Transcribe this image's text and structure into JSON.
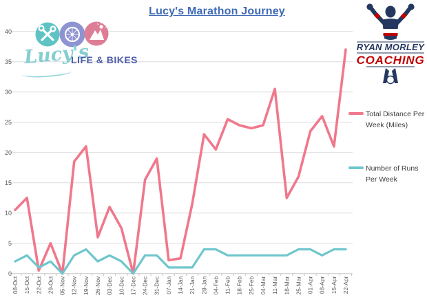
{
  "title": "Lucy's Marathon Journey",
  "logo_left": {
    "script_text": "Lucy's",
    "caps_text": "LIFE & BIKES",
    "icon_circle_colors": [
      "#5FC3C4",
      "#8E93D2",
      "#DC7E95"
    ],
    "script_color": "#85CED1",
    "caps_color": "#4C5BA8"
  },
  "logo_right": {
    "line1": "RYAN MORLEY",
    "line2": "COACHING",
    "navy": "#24385F",
    "red": "#C00000"
  },
  "legend": [
    {
      "label": "Total Distance Per Week (Miles)",
      "color": "#F0788C"
    },
    {
      "label": "Number of Runs Per Week",
      "color": "#6EC6CD"
    }
  ],
  "chart_data": {
    "type": "line",
    "title": "Lucy's Marathon Journey",
    "categories": [
      "08-Oct",
      "15-Oct",
      "22-Oct",
      "29-Oct",
      "05-Nov",
      "12-Nov",
      "19-Nov",
      "26-Nov",
      "03-Dec",
      "10-Dec",
      "17-Dec",
      "24-Dec",
      "31-Dec",
      "07-Jan",
      "14-Jan",
      "21-Jan",
      "28-Jan",
      "04-Feb",
      "11-Feb",
      "18-Feb",
      "25-Feb",
      "04-Mar",
      "11-Mar",
      "18-Mar",
      "25-Mar",
      "01-Apr",
      "08-Apr",
      "15-Apr",
      "22-Apr"
    ],
    "series": [
      {
        "name": "Total Distance Per Week (Miles)",
        "color": "#F0788C",
        "values": [
          10.5,
          12.5,
          0.5,
          5,
          0,
          18.5,
          21,
          6,
          11,
          7.5,
          0,
          15.5,
          19,
          2.2,
          2.5,
          11.5,
          23,
          20.5,
          25.5,
          24.5,
          24,
          24.5,
          30.5,
          12.5,
          16,
          23.5,
          26,
          21,
          37
        ]
      },
      {
        "name": "Number of Runs Per Week",
        "color": "#6EC6CD",
        "values": [
          2,
          3,
          1,
          2,
          0,
          3,
          4,
          2,
          3,
          2,
          0,
          3,
          3,
          1,
          1,
          1,
          4,
          4,
          3,
          3,
          3,
          3,
          3,
          3,
          4,
          4,
          3,
          4,
          4
        ]
      }
    ],
    "ylim": [
      0,
      40
    ],
    "ytick_step": 5,
    "ytick_labels": [
      "0",
      "5",
      "10",
      "15",
      "20",
      "25",
      "30",
      "35",
      "40"
    ],
    "grid": true,
    "legend_position": "right",
    "x_label_rotation": -90
  }
}
